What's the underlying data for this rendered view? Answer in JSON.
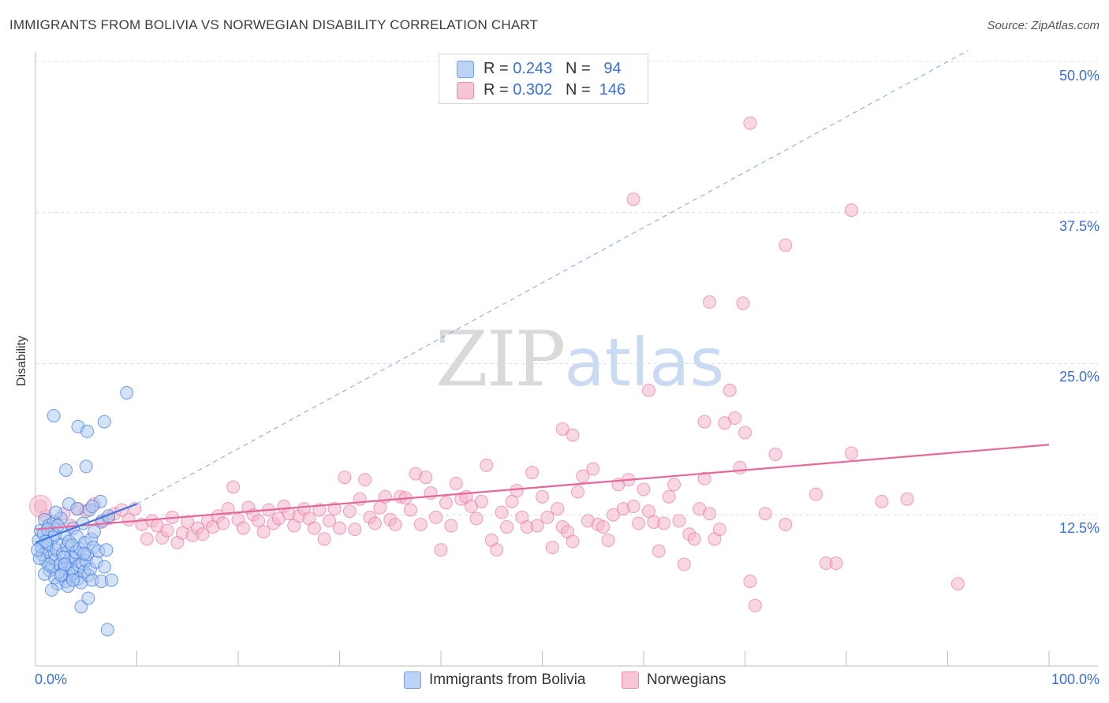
{
  "title": "IMMIGRANTS FROM BOLIVIA VS NORWEGIAN DISABILITY CORRELATION CHART",
  "source": "Source: ZipAtlas.com",
  "watermark": {
    "zip": "ZIP",
    "atlas": "atlas"
  },
  "legend": {
    "rows": [
      {
        "r_label": "R =",
        "r_value": "0.243",
        "n_label": "N =",
        "n_value": "94",
        "color": "#6fa0e8",
        "fill": "#bcd3f5"
      },
      {
        "r_label": "R =",
        "r_value": "0.302",
        "n_label": "N =",
        "n_value": "146",
        "color": "#ec8fb0",
        "fill": "#f7c6d6"
      }
    ]
  },
  "bottom_legend": [
    {
      "label": "Immigrants from Bolivia",
      "color": "#6fa0e8",
      "fill": "#bcd3f5"
    },
    {
      "label": "Norwegians",
      "color": "#ec8fb0",
      "fill": "#f7c6d6"
    }
  ],
  "chart_data": {
    "type": "scatter",
    "title": "IMMIGRANTS FROM BOLIVIA VS NORWEGIAN DISABILITY CORRELATION CHART",
    "xlabel": "",
    "ylabel": "Disability",
    "xlim": [
      0,
      100
    ],
    "ylim": [
      0,
      50
    ],
    "x_tick_labels": [
      "0.0%",
      "100.0%"
    ],
    "y_tick_labels": [
      "12.5%",
      "25.0%",
      "37.5%",
      "50.0%"
    ],
    "y_ticks": [
      12.5,
      25.0,
      37.5,
      50.0
    ],
    "grid": "horizontal dashed",
    "legend_position": "top-center",
    "series": [
      {
        "name": "Immigrants from Bolivia",
        "color": "#3b78e0",
        "fill": "#a9c6f2",
        "trend": {
          "x": [
            0,
            10
          ],
          "y": [
            10.2,
            13.4
          ],
          "style": "solid"
        },
        "trend_extension": {
          "x": [
            10,
            92
          ],
          "y": [
            13.4,
            50.9
          ],
          "style": "dashed"
        },
        "points": [
          [
            0.3,
            10.4
          ],
          [
            0.5,
            11.2
          ],
          [
            0.6,
            9.8
          ],
          [
            0.8,
            10.9
          ],
          [
            0.9,
            12.1
          ],
          [
            1.0,
            8.7
          ],
          [
            1.1,
            9.5
          ],
          [
            1.2,
            10.1
          ],
          [
            1.3,
            11.6
          ],
          [
            1.4,
            7.9
          ],
          [
            1.5,
            9.0
          ],
          [
            1.6,
            8.2
          ],
          [
            1.7,
            10.6
          ],
          [
            1.8,
            11.9
          ],
          [
            1.9,
            7.3
          ],
          [
            2.0,
            8.8
          ],
          [
            2.1,
            9.6
          ],
          [
            2.2,
            6.8
          ],
          [
            2.3,
            10.0
          ],
          [
            2.4,
            8.4
          ],
          [
            2.5,
            12.2
          ],
          [
            2.6,
            7.6
          ],
          [
            2.7,
            9.3
          ],
          [
            2.8,
            11.0
          ],
          [
            2.9,
            8.1
          ],
          [
            3.0,
            7.0
          ],
          [
            3.1,
            9.9
          ],
          [
            3.2,
            8.6
          ],
          [
            3.3,
            10.3
          ],
          [
            3.4,
            7.4
          ],
          [
            3.5,
            9.1
          ],
          [
            3.6,
            8.0
          ],
          [
            3.7,
            11.4
          ],
          [
            3.8,
            7.7
          ],
          [
            3.9,
            8.9
          ],
          [
            4.0,
            9.4
          ],
          [
            4.1,
            10.7
          ],
          [
            4.2,
            7.2
          ],
          [
            4.3,
            8.3
          ],
          [
            4.4,
            9.7
          ],
          [
            4.5,
            6.9
          ],
          [
            4.6,
            8.5
          ],
          [
            4.7,
            11.8
          ],
          [
            4.8,
            7.8
          ],
          [
            4.9,
            10.2
          ],
          [
            5.0,
            8.7
          ],
          [
            5.1,
            9.2
          ],
          [
            5.2,
            7.5
          ],
          [
            5.3,
            12.9
          ],
          [
            5.4,
            8.0
          ],
          [
            5.5,
            10.5
          ],
          [
            5.6,
            7.1
          ],
          [
            5.7,
            9.8
          ],
          [
            5.8,
            11.1
          ],
          [
            6.0,
            8.6
          ],
          [
            6.2,
            9.5
          ],
          [
            6.4,
            13.6
          ],
          [
            6.6,
            12.0
          ],
          [
            6.8,
            8.2
          ],
          [
            7.0,
            9.6
          ],
          [
            7.2,
            12.4
          ],
          [
            1.2,
            11.3
          ],
          [
            2.0,
            12.7
          ],
          [
            0.7,
            9.2
          ],
          [
            1.6,
            6.3
          ],
          [
            3.2,
            6.6
          ],
          [
            4.5,
            4.9
          ],
          [
            0.9,
            7.6
          ],
          [
            1.9,
            10.8
          ],
          [
            2.8,
            9.0
          ],
          [
            3.3,
            13.4
          ],
          [
            4.1,
            13.0
          ],
          [
            5.0,
            16.5
          ],
          [
            3.0,
            16.2
          ],
          [
            1.8,
            20.7
          ],
          [
            4.2,
            19.8
          ],
          [
            5.1,
            19.4
          ],
          [
            6.8,
            20.2
          ],
          [
            9.0,
            22.6
          ],
          [
            5.6,
            13.2
          ],
          [
            6.5,
            7.0
          ],
          [
            7.5,
            7.1
          ],
          [
            5.2,
            5.6
          ],
          [
            7.1,
            3.0
          ],
          [
            3.7,
            7.1
          ],
          [
            2.5,
            7.5
          ],
          [
            1.3,
            8.4
          ],
          [
            0.4,
            8.9
          ],
          [
            2.2,
            11.6
          ],
          [
            3.6,
            10.0
          ],
          [
            4.8,
            9.3
          ],
          [
            0.2,
            9.6
          ],
          [
            1.0,
            10.3
          ],
          [
            2.9,
            8.4
          ]
        ]
      },
      {
        "name": "Norwegians",
        "color": "#e5679a",
        "fill": "#f4b6cb",
        "trend": {
          "x": [
            0,
            100
          ],
          "y": [
            11.3,
            18.3
          ],
          "style": "solid"
        },
        "points": [
          [
            0.5,
            13.2
          ],
          [
            1.0,
            12.4
          ],
          [
            2.0,
            11.8
          ],
          [
            2.8,
            12.6
          ],
          [
            3.5,
            11.6
          ],
          [
            4.2,
            13.0
          ],
          [
            5.0,
            12.8
          ],
          [
            5.8,
            13.4
          ],
          [
            6.5,
            11.9
          ],
          [
            7.2,
            12.2
          ],
          [
            7.8,
            12.6
          ],
          [
            8.5,
            12.9
          ],
          [
            9.2,
            12.1
          ],
          [
            9.8,
            13.0
          ],
          [
            10.5,
            11.7
          ],
          [
            11.0,
            10.5
          ],
          [
            11.5,
            12.0
          ],
          [
            12.0,
            11.6
          ],
          [
            12.5,
            10.6
          ],
          [
            13.0,
            11.2
          ],
          [
            13.5,
            12.3
          ],
          [
            14.0,
            10.2
          ],
          [
            14.5,
            11.0
          ],
          [
            15.0,
            11.9
          ],
          [
            15.5,
            10.8
          ],
          [
            16.0,
            11.4
          ],
          [
            16.5,
            10.9
          ],
          [
            17.0,
            12.0
          ],
          [
            17.5,
            11.5
          ],
          [
            18.0,
            12.4
          ],
          [
            18.5,
            11.8
          ],
          [
            19.0,
            13.0
          ],
          [
            19.5,
            14.8
          ],
          [
            20.0,
            12.1
          ],
          [
            20.5,
            11.4
          ],
          [
            21.0,
            13.1
          ],
          [
            21.5,
            12.5
          ],
          [
            22.0,
            12.0
          ],
          [
            22.5,
            11.1
          ],
          [
            23.0,
            12.9
          ],
          [
            23.5,
            11.8
          ],
          [
            24.0,
            12.2
          ],
          [
            24.5,
            13.2
          ],
          [
            25.0,
            12.6
          ],
          [
            25.5,
            11.6
          ],
          [
            26.0,
            12.4
          ],
          [
            26.5,
            13.0
          ],
          [
            27.0,
            12.2
          ],
          [
            27.5,
            11.4
          ],
          [
            28.0,
            12.9
          ],
          [
            28.5,
            10.5
          ],
          [
            29.0,
            12.0
          ],
          [
            29.5,
            13.0
          ],
          [
            30.0,
            11.4
          ],
          [
            30.5,
            15.6
          ],
          [
            31.0,
            12.8
          ],
          [
            31.5,
            11.3
          ],
          [
            32.0,
            13.8
          ],
          [
            32.5,
            15.4
          ],
          [
            33.0,
            12.3
          ],
          [
            33.5,
            11.8
          ],
          [
            34.0,
            13.1
          ],
          [
            34.5,
            14.0
          ],
          [
            35.0,
            12.1
          ],
          [
            35.5,
            11.7
          ],
          [
            36.0,
            14.0
          ],
          [
            36.5,
            13.9
          ],
          [
            37.0,
            12.9
          ],
          [
            37.5,
            15.9
          ],
          [
            38.0,
            11.7
          ],
          [
            38.5,
            15.6
          ],
          [
            39.0,
            14.3
          ],
          [
            39.5,
            12.3
          ],
          [
            40.0,
            9.6
          ],
          [
            40.5,
            13.5
          ],
          [
            41.0,
            11.6
          ],
          [
            41.5,
            15.1
          ],
          [
            42.0,
            13.8
          ],
          [
            42.5,
            14.0
          ],
          [
            43.0,
            13.2
          ],
          [
            43.5,
            12.2
          ],
          [
            44.0,
            13.6
          ],
          [
            44.5,
            16.6
          ],
          [
            45.0,
            10.4
          ],
          [
            45.5,
            9.6
          ],
          [
            46.0,
            12.7
          ],
          [
            46.5,
            11.5
          ],
          [
            47.0,
            13.6
          ],
          [
            47.5,
            14.5
          ],
          [
            48.0,
            12.3
          ],
          [
            48.5,
            11.5
          ],
          [
            49.0,
            16.0
          ],
          [
            49.5,
            11.6
          ],
          [
            50.0,
            14.0
          ],
          [
            50.5,
            12.3
          ],
          [
            51.0,
            9.8
          ],
          [
            51.5,
            13.0
          ],
          [
            52.0,
            11.5
          ],
          [
            52.5,
            11.1
          ],
          [
            53.0,
            10.3
          ],
          [
            53.5,
            14.4
          ],
          [
            54.0,
            15.7
          ],
          [
            54.5,
            12.0
          ],
          [
            55.0,
            16.3
          ],
          [
            55.5,
            11.7
          ],
          [
            56.0,
            11.5
          ],
          [
            56.5,
            10.4
          ],
          [
            57.0,
            12.5
          ],
          [
            57.5,
            15.0
          ],
          [
            58.0,
            13.0
          ],
          [
            58.5,
            15.4
          ],
          [
            59.0,
            13.2
          ],
          [
            59.5,
            11.8
          ],
          [
            60.0,
            14.6
          ],
          [
            60.5,
            12.8
          ],
          [
            61.0,
            11.9
          ],
          [
            61.5,
            9.5
          ],
          [
            62.0,
            11.8
          ],
          [
            62.5,
            14.0
          ],
          [
            63.0,
            15.0
          ],
          [
            63.5,
            12.0
          ],
          [
            64.0,
            8.4
          ],
          [
            64.5,
            10.9
          ],
          [
            65.0,
            10.5
          ],
          [
            65.5,
            13.0
          ],
          [
            66.0,
            15.5
          ],
          [
            66.5,
            12.6
          ],
          [
            67.0,
            10.5
          ],
          [
            67.5,
            11.3
          ],
          [
            68.0,
            20.1
          ],
          [
            68.5,
            22.8
          ],
          [
            69.0,
            20.5
          ],
          [
            69.5,
            16.4
          ],
          [
            70.0,
            19.3
          ],
          [
            70.5,
            7.0
          ],
          [
            71.0,
            5.0
          ],
          [
            72.0,
            12.6
          ],
          [
            73.0,
            17.5
          ],
          [
            74.0,
            11.7
          ],
          [
            77.0,
            14.2
          ],
          [
            78.0,
            8.5
          ],
          [
            79.0,
            8.5
          ],
          [
            80.5,
            17.6
          ],
          [
            86.0,
            13.8
          ],
          [
            91.0,
            6.8
          ],
          [
            83.5,
            13.6
          ]
        ],
        "outliers": [
          [
            59.0,
            38.6
          ],
          [
            70.5,
            44.9
          ],
          [
            80.5,
            37.7
          ],
          [
            74.0,
            34.8
          ],
          [
            66.5,
            30.1
          ],
          [
            69.8,
            30.0
          ],
          [
            52.0,
            19.6
          ],
          [
            53.0,
            19.1
          ],
          [
            60.5,
            22.8
          ],
          [
            66.0,
            20.2
          ]
        ]
      }
    ]
  }
}
